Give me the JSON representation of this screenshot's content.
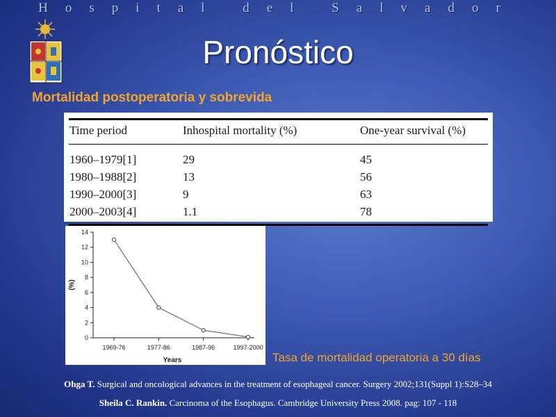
{
  "banner": "Hospital del Salvador",
  "title": "Pronóstico",
  "subtitle": "Mortalidad postoperatoria y sobrevida",
  "table": {
    "headers": [
      "Time period",
      "Inhospital mortality (%)",
      "One-year survival (%)"
    ],
    "rows": [
      [
        "1960–1979[1]",
        "29",
        "45"
      ],
      [
        "1980–1988[2]",
        "13",
        "56"
      ],
      [
        "1990–2000[3]",
        "9",
        "63"
      ],
      [
        "2000–2003[4]",
        "1.1",
        "78"
      ]
    ]
  },
  "chart_data": {
    "type": "line",
    "categories": [
      "1969-76",
      "1977-86",
      "1987-96",
      "1997-2000"
    ],
    "values": [
      13,
      4,
      1,
      0.1
    ],
    "xlabel": "Years",
    "ylabel": "(%)",
    "ylim": [
      0,
      14
    ],
    "yticks": [
      0,
      2,
      4,
      6,
      8,
      10,
      12,
      14
    ],
    "grid": false
  },
  "caption": "Tasa de mortalidad operatoria a 30 días",
  "references": [
    {
      "author": "Ohga T.",
      "text": " Surgical and oncological advances in the treatment of esophageal cancer. Surgery 2002;131(Suppl 1):S28–34"
    },
    {
      "author": "Sheila C. Rankin.",
      "text": " Carcinoma of the Esophagus. Cambridge University Press 2008. pag: 107 - 118"
    }
  ],
  "colors": {
    "accent": "#f3a42e",
    "background": "#3d5cb3"
  }
}
